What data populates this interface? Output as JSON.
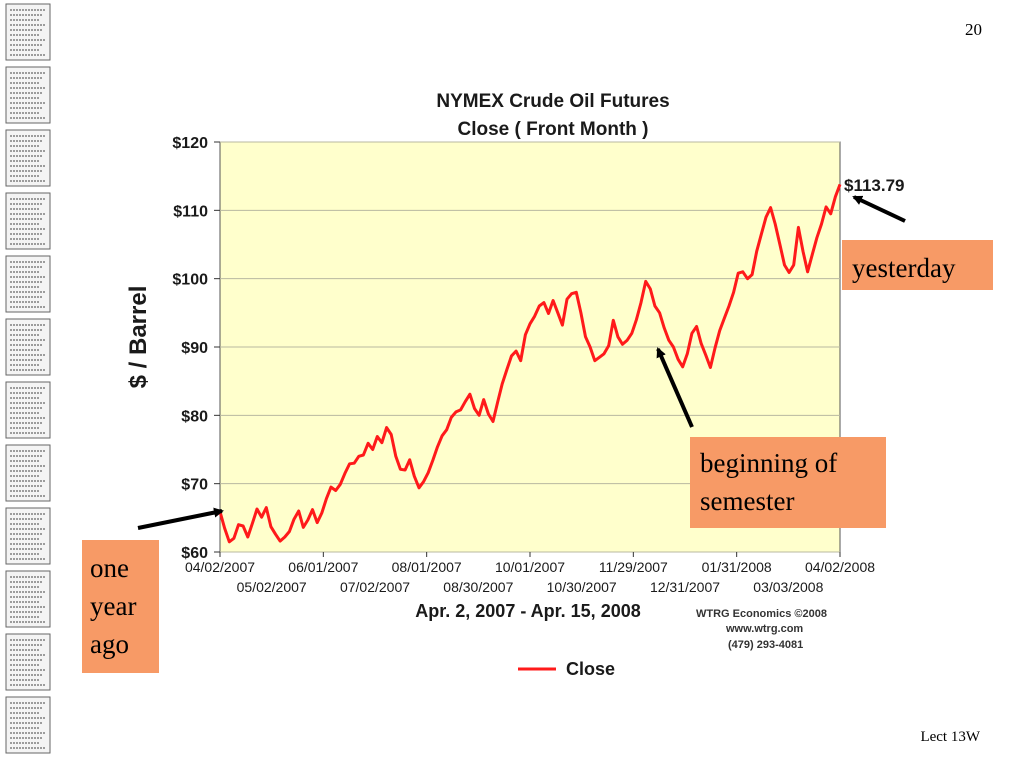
{
  "slide": {
    "number": "20",
    "footer": "Lect 13W"
  },
  "colors": {
    "plot_background": "#ffffcc",
    "line": "#ff1a1a",
    "callout": "#f79a66",
    "grid": "#b8b8a0"
  },
  "callouts": {
    "yesterday": "yesterday",
    "semester": [
      "beginning of",
      "semester"
    ],
    "year": [
      "one",
      "year",
      "ago"
    ]
  },
  "chart_data": {
    "type": "line",
    "title": [
      "NYMEX Crude Oil Futures",
      "Close ( Front Month )"
    ],
    "ylabel": "$ / Barrel",
    "xlabel": "Apr. 2, 2007 - Apr. 15, 2008",
    "ylim": [
      60,
      120
    ],
    "ytick_labels": [
      "$60",
      "$70",
      "$80",
      "$90",
      "$100",
      "$110",
      "$120"
    ],
    "xtick_labels_row1": [
      "04/02/2007",
      "06/01/2007",
      "08/01/2007",
      "10/01/2007",
      "11/29/2007",
      "01/31/2008",
      "04/02/2008"
    ],
    "xtick_labels_row2": [
      "05/02/2007",
      "07/02/2007",
      "08/30/2007",
      "10/30/2007",
      "12/31/2007",
      "03/03/2008"
    ],
    "grid": true,
    "legend": "bottom-center",
    "last_value_label": "$113.79",
    "credit": [
      "WTRG Economics  ©2008",
      "www.wtrg.com",
      "(479) 293-4081"
    ],
    "series": [
      {
        "name": "Close",
        "values": [
          65.9,
          63.5,
          61.5,
          62.0,
          64.0,
          63.8,
          62.2,
          64.2,
          66.3,
          65.1,
          66.5,
          63.7,
          62.6,
          61.6,
          62.2,
          63.0,
          64.8,
          66.0,
          63.6,
          64.7,
          66.2,
          64.3,
          65.7,
          67.8,
          69.5,
          69.0,
          69.9,
          71.5,
          72.9,
          73.0,
          74.0,
          74.2,
          75.9,
          75.0,
          76.9,
          76.0,
          78.2,
          77.2,
          74.0,
          72.1,
          72.0,
          73.5,
          71.1,
          69.4,
          70.3,
          71.6,
          73.4,
          75.4,
          77.0,
          77.9,
          79.7,
          80.5,
          80.8,
          82.0,
          83.1,
          81.0,
          80.0,
          82.3,
          80.2,
          79.1,
          81.9,
          84.6,
          86.7,
          88.7,
          89.4,
          88.0,
          91.8,
          93.4,
          94.5,
          96.0,
          96.5,
          94.9,
          96.8,
          95.0,
          93.2,
          97.0,
          97.8,
          98.0,
          95.0,
          91.5,
          90.0,
          88.0,
          88.5,
          89.0,
          90.2,
          93.9,
          91.5,
          90.4,
          91.0,
          92.0,
          94.0,
          96.5,
          99.6,
          98.5,
          96.0,
          95.0,
          92.8,
          91.0,
          90.0,
          88.2,
          87.1,
          89.0,
          92.0,
          93.0,
          90.5,
          88.8,
          87.0,
          89.9,
          92.4,
          94.2,
          96.0,
          98.0,
          100.8,
          101.0,
          100.0,
          100.6,
          104.0,
          106.5,
          109.0,
          110.4,
          108.0,
          105.0,
          102.0,
          100.9,
          102.0,
          107.5,
          104.0,
          101.0,
          103.5,
          106.0,
          108.0,
          110.5,
          109.5,
          112.0,
          113.79
        ]
      }
    ]
  }
}
